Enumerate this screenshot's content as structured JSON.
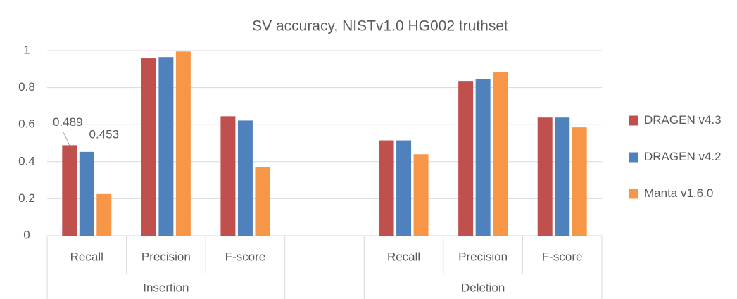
{
  "chart_data": {
    "type": "bar",
    "title": "SV accuracy, NISTv1.0 HG002 truthset",
    "category_groups": [
      {
        "label": "Insertion",
        "categories": [
          "Recall",
          "Precision",
          "F-score"
        ]
      },
      {
        "label": null,
        "categories": [
          null
        ]
      },
      {
        "label": "Deletion",
        "categories": [
          "Recall",
          "Precision",
          "F-score"
        ]
      }
    ],
    "series": [
      {
        "name": "DRAGEN v4.3",
        "color": "#c0504d",
        "values": [
          0.489,
          0.958,
          0.645,
          null,
          0.515,
          0.836,
          0.638
        ],
        "value_labels": [
          "0.489",
          null,
          null,
          null,
          null,
          null,
          null
        ]
      },
      {
        "name": "DRAGEN v4.2",
        "color": "#4f81bd",
        "values": [
          0.453,
          0.965,
          0.622,
          null,
          0.515,
          0.845,
          0.638
        ],
        "value_labels": [
          "0.453",
          null,
          null,
          null,
          null,
          null,
          null
        ]
      },
      {
        "name": "Manta v1.6.0",
        "color": "#f79646",
        "values": [
          0.225,
          0.995,
          0.37,
          null,
          0.44,
          0.882,
          0.585
        ]
      }
    ],
    "ylim": [
      0,
      1
    ],
    "yticks": [
      0,
      0.2,
      0.4,
      0.6,
      0.8,
      1
    ],
    "grid": true,
    "legend": "right"
  }
}
